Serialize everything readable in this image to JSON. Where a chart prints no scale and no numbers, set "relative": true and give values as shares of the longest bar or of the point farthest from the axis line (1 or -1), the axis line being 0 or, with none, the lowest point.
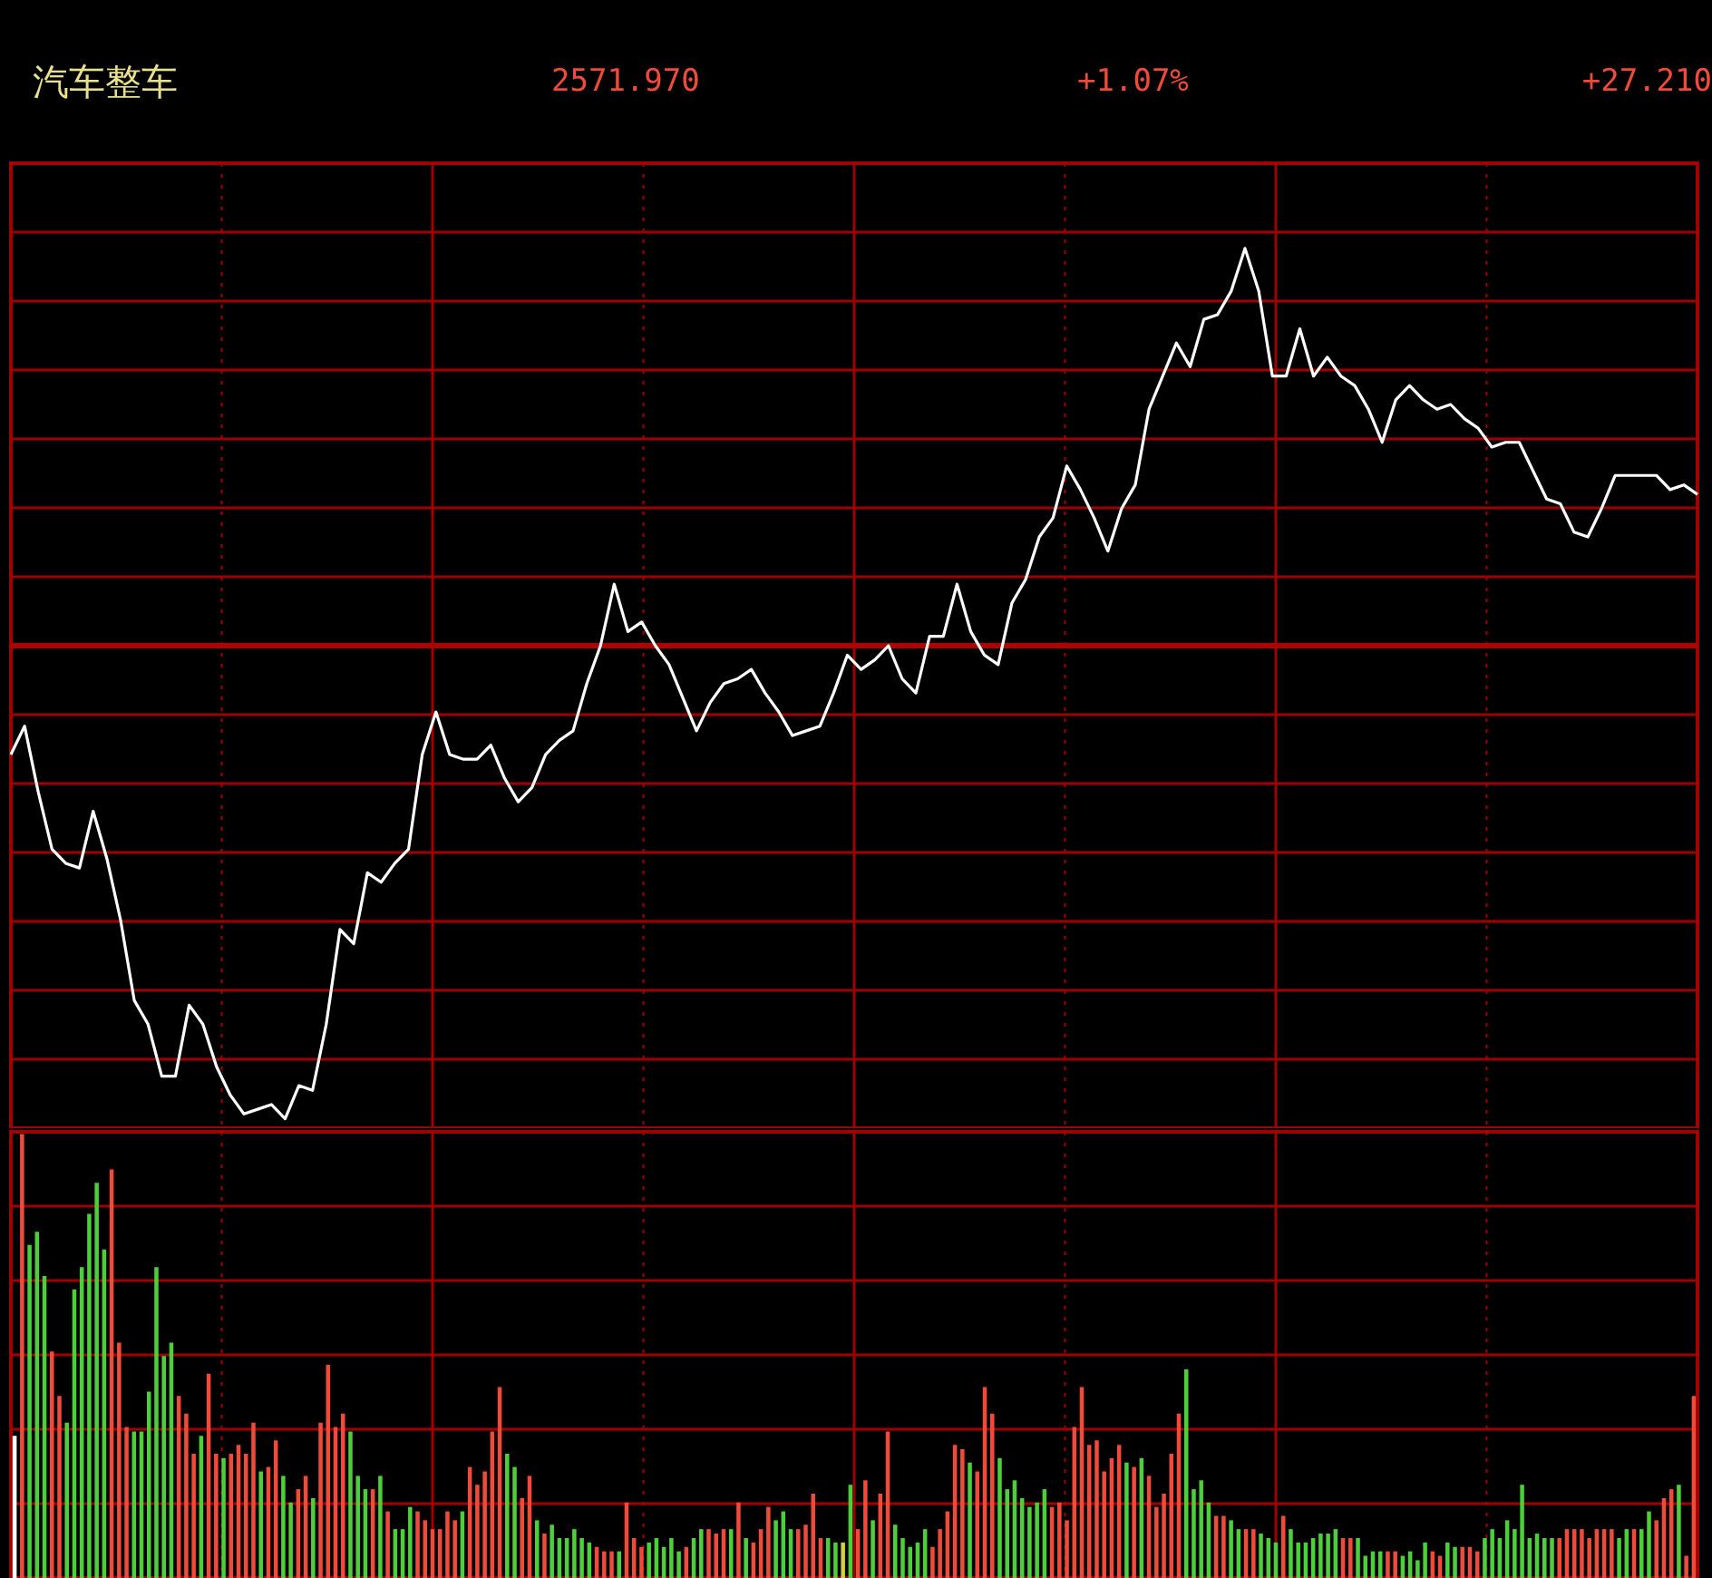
{
  "chart_data": [
    {
      "type": "line",
      "title": "汽车整车",
      "annotations": [
        "2571.970",
        "+1.07%",
        "+27.210"
      ],
      "relative": true,
      "grid": true,
      "marker": "none",
      "color": "#ffffff",
      "categories": [
        null,
        null,
        null,
        null,
        null,
        null,
        null,
        null,
        null,
        null,
        null,
        null,
        null,
        null,
        null,
        null,
        null,
        null,
        null,
        null,
        null,
        null,
        null,
        null,
        null,
        null,
        null,
        null,
        null,
        null,
        null,
        null,
        null,
        null,
        null,
        null,
        null,
        null,
        null,
        null,
        null,
        null,
        null,
        null,
        null,
        null,
        null,
        null,
        null,
        null,
        null,
        null,
        null,
        null,
        null,
        null,
        null,
        null,
        null,
        null,
        null,
        null,
        null,
        null,
        null,
        null,
        null,
        null,
        null,
        null,
        null,
        null,
        null,
        null,
        null,
        null,
        null,
        null,
        null,
        null,
        null,
        null,
        null,
        null,
        null,
        null,
        null,
        null,
        null,
        null,
        null,
        null,
        null,
        null,
        null,
        null,
        null,
        null,
        null,
        null,
        null,
        null,
        null,
        null,
        null,
        null,
        null,
        null,
        null,
        null,
        null,
        null,
        null,
        null,
        null,
        null,
        null,
        null,
        null,
        null,
        null,
        null,
        null,
        null
      ],
      "values": [
        -0.23,
        -0.17,
        -0.31,
        -0.43,
        -0.46,
        -0.47,
        -0.35,
        -0.45,
        -0.58,
        -0.75,
        -0.8,
        -0.91,
        -0.91,
        -0.76,
        -0.8,
        -0.89,
        -0.95,
        -0.99,
        -0.98,
        -0.97,
        -1,
        -0.93,
        -0.94,
        -0.8,
        -0.6,
        -0.63,
        -0.48,
        -0.5,
        -0.46,
        -0.43,
        -0.23,
        -0.14,
        -0.23,
        -0.24,
        -0.24,
        -0.21,
        -0.28,
        -0.33,
        -0.3,
        -0.23,
        -0.2,
        -0.18,
        -0.08,
        0,
        0.13,
        0.03,
        0.05,
        0,
        -0.04,
        -0.11,
        -0.18,
        -0.12,
        -0.08,
        -0.07,
        -0.05,
        -0.1,
        -0.14,
        -0.19,
        -0.18,
        -0.17,
        -0.1,
        -0.02,
        -0.05,
        -0.03,
        0,
        -0.07,
        -0.1,
        0.02,
        0.02,
        0.13,
        0.03,
        -0.02,
        -0.04,
        0.09,
        0.14,
        0.23,
        0.27,
        0.38,
        0.33,
        0.27,
        0.2,
        0.29,
        0.34,
        0.5,
        0.57,
        0.64,
        0.59,
        0.69,
        0.7,
        0.75,
        0.84,
        0.75,
        0.57,
        0.57,
        0.67,
        0.57,
        0.61,
        0.57,
        0.55,
        0.5,
        0.43,
        0.52,
        0.55,
        0.52,
        0.5,
        0.51,
        0.48,
        0.46,
        0.42,
        0.43,
        0.43,
        0.37,
        0.31,
        0.3,
        0.24,
        0.23,
        0.29,
        0.36,
        0.36,
        0.36,
        0.36,
        0.33,
        0.34,
        0.32
      ],
      "ref_lines": [
        {
          "axis": "y",
          "value": 0,
          "color": "#b00000"
        }
      ]
    },
    {
      "type": "bar",
      "relative": true,
      "grid": true,
      "categories": [
        null,
        null,
        null,
        null,
        null,
        null,
        null,
        null,
        null,
        null,
        null,
        null,
        null,
        null,
        null,
        null,
        null,
        null,
        null,
        null,
        null,
        null,
        null,
        null,
        null,
        null,
        null,
        null,
        null,
        null,
        null,
        null,
        null,
        null,
        null,
        null,
        null,
        null,
        null,
        null,
        null,
        null,
        null,
        null,
        null,
        null,
        null,
        null,
        null,
        null,
        null,
        null,
        null,
        null,
        null,
        null,
        null,
        null,
        null,
        null,
        null,
        null,
        null,
        null,
        null,
        null,
        null,
        null,
        null,
        null,
        null,
        null,
        null,
        null,
        null,
        null,
        null,
        null,
        null,
        null,
        null,
        null,
        null,
        null,
        null,
        null,
        null,
        null,
        null,
        null,
        null,
        null,
        null,
        null,
        null,
        null,
        null,
        null,
        null,
        null,
        null,
        null,
        null,
        null,
        null,
        null,
        null,
        null,
        null,
        null,
        null,
        null,
        null,
        null,
        null,
        null,
        null,
        null,
        null,
        null,
        null,
        null,
        null,
        null,
        null,
        null,
        null,
        null,
        null,
        null,
        null,
        null,
        null,
        null,
        null,
        null,
        null,
        null,
        null,
        null,
        null,
        null,
        null,
        null,
        null,
        null,
        null,
        null,
        null,
        null,
        null,
        null,
        null,
        null,
        null,
        null,
        null,
        null,
        null,
        null,
        null,
        null,
        null,
        null,
        null,
        null,
        null,
        null,
        null,
        null,
        null,
        null,
        null,
        null,
        null,
        null,
        null,
        null,
        null,
        null,
        null,
        null,
        null,
        null,
        null,
        null,
        null,
        null,
        null,
        null,
        null,
        null,
        null,
        null,
        null,
        null,
        null,
        null,
        null,
        null,
        null,
        null,
        null,
        null,
        null,
        null,
        null,
        null,
        null,
        null,
        null,
        null,
        null,
        null,
        null,
        null,
        null,
        null,
        null,
        null,
        null,
        null,
        null,
        null,
        null,
        null
      ],
      "values": [
        0.32,
        1,
        0.75,
        0.78,
        0.68,
        0.51,
        0.41,
        0.35,
        0.65,
        0.7,
        0.82,
        0.89,
        0.74,
        0.92,
        0.53,
        0.34,
        0.33,
        0.33,
        0.42,
        0.7,
        0.5,
        0.53,
        0.41,
        0.37,
        0.28,
        0.32,
        0.46,
        0.28,
        0.27,
        0.28,
        0.3,
        0.28,
        0.35,
        0.24,
        0.25,
        0.31,
        0.23,
        0.17,
        0.2,
        0.23,
        0.18,
        0.35,
        0.48,
        0.34,
        0.37,
        0.33,
        0.23,
        0.2,
        0.2,
        0.23,
        0.15,
        0.11,
        0.11,
        0.16,
        0.15,
        0.13,
        0.11,
        0.11,
        0.15,
        0.13,
        0.15,
        0.25,
        0.21,
        0.24,
        0.33,
        0.43,
        0.28,
        0.25,
        0.18,
        0.23,
        0.13,
        0.1,
        0.12,
        0.09,
        0.09,
        0.11,
        0.09,
        0.08,
        0.07,
        0.06,
        0.06,
        0.06,
        0.17,
        0.09,
        0.07,
        0.08,
        0.09,
        0.07,
        0.09,
        0.06,
        0.07,
        0.09,
        0.11,
        0.11,
        0.1,
        0.11,
        0.11,
        0.17,
        0.09,
        0.08,
        0.11,
        0.16,
        0.13,
        0.15,
        0.11,
        0.11,
        0.12,
        0.19,
        0.09,
        0.09,
        0.08,
        0.08,
        0.21,
        0.11,
        0.22,
        0.13,
        0.19,
        0.33,
        0.12,
        0.09,
        0.07,
        0.08,
        0.11,
        0.07,
        0.11,
        0.15,
        0.3,
        0.29,
        0.26,
        0.24,
        0.43,
        0.37,
        0.27,
        0.2,
        0.22,
        0.18,
        0.16,
        0.17,
        0.2,
        0.16,
        0.17,
        0.13,
        0.34,
        0.43,
        0.3,
        0.31,
        0.24,
        0.27,
        0.3,
        0.26,
        0.25,
        0.27,
        0.23,
        0.16,
        0.19,
        0.28,
        0.37,
        0.47,
        0.2,
        0.22,
        0.17,
        0.14,
        0.14,
        0.13,
        0.11,
        0.11,
        0.11,
        0.1,
        0.09,
        0.08,
        0.14,
        0.11,
        0.08,
        0.08,
        0.09,
        0.1,
        0.1,
        0.11,
        0.09,
        0.09,
        0.09,
        0.05,
        0.06,
        0.06,
        0.06,
        0.06,
        0.05,
        0.06,
        0.04,
        0.08,
        0.06,
        0.05,
        0.08,
        0.07,
        0.07,
        0.07,
        0.06,
        0.09,
        0.11,
        0.09,
        0.13,
        0.11,
        0.21,
        0.09,
        0.1,
        0.09,
        0.09,
        0.09,
        0.11,
        0.11,
        0.11,
        0.09,
        0.11,
        0.11,
        0.11,
        0.09,
        0.11,
        0.11,
        0.11,
        0.15,
        0.13,
        0.18,
        0.2,
        0.21,
        0.05,
        0.41
      ],
      "colors": [
        "#ffffff",
        "#f04a3a",
        "#4ccf3a",
        "#4ccf3a",
        "#4ccf3a",
        "#f04a3a",
        "#f04a3a",
        "#4ccf3a",
        "#4ccf3a",
        "#4ccf3a",
        "#4ccf3a",
        "#4ccf3a",
        "#4ccf3a",
        "#f04a3a",
        "#f04a3a",
        "#f04a3a",
        "#4ccf3a",
        "#4ccf3a",
        "#4ccf3a",
        "#4ccf3a",
        "#4ccf3a",
        "#4ccf3a",
        "#f04a3a",
        "#f04a3a",
        "#f04a3a",
        "#4ccf3a",
        "#f04a3a",
        "#f04a3a",
        "#4ccf3a",
        "#f04a3a",
        "#f04a3a",
        "#f04a3a",
        "#f04a3a",
        "#4ccf3a",
        "#f04a3a",
        "#f04a3a",
        "#4ccf3a",
        "#4ccf3a",
        "#f04a3a",
        "#f04a3a",
        "#4ccf3a",
        "#f04a3a",
        "#f04a3a",
        "#f04a3a",
        "#f04a3a",
        "#4ccf3a",
        "#4ccf3a",
        "#4ccf3a",
        "#f04a3a",
        "#4ccf3a",
        "#f04a3a",
        "#4ccf3a",
        "#4ccf3a",
        "#4ccf3a",
        "#f04a3a",
        "#f04a3a",
        "#f04a3a",
        "#f04a3a",
        "#f04a3a",
        "#f04a3a",
        "#4ccf3a",
        "#f04a3a",
        "#f04a3a",
        "#f04a3a",
        "#f04a3a",
        "#f04a3a",
        "#4ccf3a",
        "#4ccf3a",
        "#f04a3a",
        "#f04a3a",
        "#4ccf3a",
        "#f04a3a",
        "#4ccf3a",
        "#4ccf3a",
        "#4ccf3a",
        "#4ccf3a",
        "#4ccf3a",
        "#4ccf3a",
        "#f04a3a",
        "#f04a3a",
        "#f04a3a",
        "#4ccf3a",
        "#f04a3a",
        "#f04a3a",
        "#f04a3a",
        "#4ccf3a",
        "#4ccf3a",
        "#4ccf3a",
        "#4ccf3a",
        "#4ccf3a",
        "#f04a3a",
        "#4ccf3a",
        "#4ccf3a",
        "#f04a3a",
        "#f04a3a",
        "#f04a3a",
        "#4ccf3a",
        "#f04a3a",
        "#4ccf3a",
        "#f04a3a",
        "#f04a3a",
        "#f04a3a",
        "#4ccf3a",
        "#4ccf3a",
        "#4ccf3a",
        "#f04a3a",
        "#f04a3a",
        "#f04a3a",
        "#f04a3a",
        "#4ccf3a",
        "#4ccf3a",
        "#d0d040",
        "#4ccf3a",
        "#f04a3a",
        "#f04a3a",
        "#4ccf3a",
        "#f04a3a",
        "#f04a3a",
        "#4ccf3a",
        "#4ccf3a",
        "#4ccf3a",
        "#4ccf3a",
        "#4ccf3a",
        "#f04a3a",
        "#f04a3a",
        "#f04a3a",
        "#f04a3a",
        "#f04a3a",
        "#4ccf3a",
        "#f04a3a",
        "#f04a3a",
        "#f04a3a",
        "#4ccf3a",
        "#4ccf3a",
        "#4ccf3a",
        "#4ccf3a",
        "#4ccf3a",
        "#4ccf3a",
        "#4ccf3a",
        "#f04a3a",
        "#f04a3a",
        "#f04a3a",
        "#f04a3a",
        "#f04a3a",
        "#f04a3a",
        "#f04a3a",
        "#f04a3a",
        "#f04a3a",
        "#f04a3a",
        "#4ccf3a",
        "#f04a3a",
        "#4ccf3a",
        "#f04a3a",
        "#f04a3a",
        "#f04a3a",
        "#f04a3a",
        "#f04a3a",
        "#4ccf3a",
        "#4ccf3a",
        "#4ccf3a",
        "#4ccf3a",
        "#f04a3a",
        "#f04a3a",
        "#4ccf3a",
        "#4ccf3a",
        "#f04a3a",
        "#f04a3a",
        "#4ccf3a",
        "#4ccf3a",
        "#4ccf3a",
        "#f04a3a",
        "#4ccf3a",
        "#4ccf3a",
        "#4ccf3a",
        "#4ccf3a",
        "#4ccf3a",
        "#4ccf3a",
        "#4ccf3a",
        "#f04a3a",
        "#f04a3a",
        "#4ccf3a",
        "#4ccf3a",
        "#4ccf3a",
        "#4ccf3a",
        "#f04a3a",
        "#f04a3a",
        "#4ccf3a",
        "#4ccf3a",
        "#4ccf3a",
        "#4ccf3a",
        "#f04a3a",
        "#f04a3a",
        "#4ccf3a",
        "#4ccf3a",
        "#f04a3a",
        "#f04a3a",
        "#f04a3a",
        "#4ccf3a",
        "#4ccf3a",
        "#4ccf3a",
        "#4ccf3a",
        "#4ccf3a",
        "#4ccf3a",
        "#4ccf3a",
        "#4ccf3a",
        "#4ccf3a",
        "#4ccf3a",
        "#f04a3a",
        "#f04a3a",
        "#f04a3a",
        "#f04a3a",
        "#f04a3a",
        "#f04a3a",
        "#f04a3a",
        "#f04a3a",
        "#4ccf3a",
        "#4ccf3a",
        "#f04a3a",
        "#4ccf3a",
        "#4ccf3a",
        "#f04a3a",
        "#f04a3a",
        "#f04a3a",
        "#4ccf3a",
        "#f04a3a",
        "#f04a3a"
      ]
    }
  ]
}
